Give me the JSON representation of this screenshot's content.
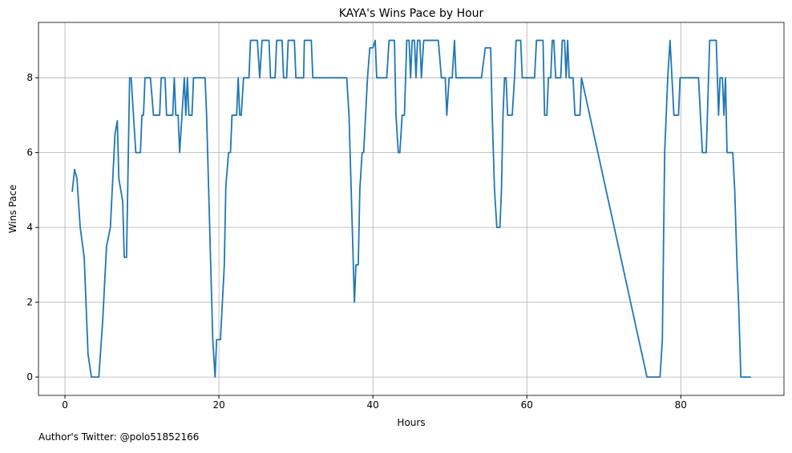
{
  "chart_data": {
    "type": "line",
    "title": "KAYA's Wins Pace by Hour",
    "xlabel": "Hours",
    "ylabel": "Wins Pace",
    "footnote": "Author's Twitter: @polo51852166",
    "xlim": [
      -3.44,
      93.4
    ],
    "ylim": [
      -0.49,
      9.48
    ],
    "xticks": [
      0,
      20,
      40,
      60,
      80
    ],
    "yticks": [
      0,
      2,
      4,
      6,
      8
    ],
    "grid": true,
    "x": [
      0.94,
      1.25,
      1.56,
      1.98,
      2.5,
      3.0,
      3.44,
      4.4,
      4.9,
      5.4,
      5.9,
      6.5,
      6.8,
      7.0,
      7.5,
      7.7,
      8.0,
      8.4,
      8.6,
      9.2,
      9.8,
      10.0,
      10.2,
      10.4,
      11.1,
      11.5,
      12.3,
      12.5,
      13.0,
      13.2,
      14.0,
      14.2,
      14.4,
      14.7,
      14.9,
      15.5,
      15.7,
      15.9,
      16.1,
      16.5,
      16.7,
      18.2,
      18.4,
      19.2,
      19.5,
      19.7,
      20.2,
      20.7,
      20.9,
      21.25,
      21.5,
      21.7,
      22.3,
      22.5,
      22.7,
      22.9,
      23.2,
      23.9,
      24.1,
      24.99,
      25.3,
      25.6,
      26.5,
      26.7,
      27.3,
      27.5,
      28.2,
      28.4,
      28.8,
      29.0,
      29.8,
      30.0,
      31.0,
      31.1,
      32.0,
      32.2,
      36.6,
      36.9,
      37.6,
      37.8,
      38.1,
      38.3,
      38.6,
      38.8,
      39.3,
      39.6,
      40.0,
      40.3,
      40.5,
      41.8,
      42.1,
      42.8,
      43.0,
      43.3,
      43.5,
      43.8,
      44.1,
      44.4,
      44.7,
      44.9,
      45.1,
      45.4,
      45.6,
      45.8,
      46.1,
      46.3,
      46.6,
      48.5,
      48.9,
      49.4,
      49.6,
      49.9,
      50.3,
      50.6,
      50.8,
      54.1,
      54.6,
      55.3,
      55.5,
      55.8,
      56.1,
      56.5,
      56.7,
      56.9,
      57.1,
      57.3,
      57.5,
      58.1,
      58.4,
      58.6,
      59.2,
      59.4,
      61.0,
      61.25,
      62.1,
      62.3,
      62.6,
      62.8,
      63.1,
      63.3,
      63.5,
      63.75,
      64.4,
      64.6,
      64.9,
      65.1,
      65.3,
      65.5,
      66.0,
      66.25,
      66.9,
      67.1,
      75.6,
      77.3,
      77.6,
      77.9,
      78.3,
      78.6,
      78.85,
      79.1,
      79.7,
      79.9,
      82.3,
      82.8,
      83.3,
      83.75,
      84.6,
      84.9,
      85.1,
      85.4,
      85.6,
      85.8,
      86.0,
      86.75,
      87.0,
      87.3,
      87.5,
      87.8,
      89.1
    ],
    "series": [
      {
        "name": "Wins Pace",
        "color": "#1f77b4",
        "values": [
          4.95,
          5.55,
          5.3,
          4.0,
          3.2,
          0.6,
          0,
          0,
          1.5,
          3.5,
          4.0,
          6.5,
          6.85,
          5.3,
          4.7,
          3.2,
          3.2,
          8,
          8,
          6,
          6,
          7,
          7,
          8,
          8,
          7,
          7,
          8,
          8,
          7,
          7,
          8,
          7,
          7,
          6,
          8,
          7,
          8,
          7,
          7,
          8,
          8,
          7,
          1,
          0,
          1,
          1,
          3,
          5.1,
          6,
          6,
          7,
          7,
          8,
          7,
          7,
          8,
          8,
          9,
          9,
          8,
          9,
          9,
          8,
          8,
          9,
          9,
          8,
          8,
          9,
          9,
          8,
          8,
          9,
          9,
          8,
          8,
          7,
          2,
          3,
          3,
          5,
          6,
          6,
          8,
          8.8,
          8.8,
          9,
          8,
          8,
          9,
          9,
          7,
          6,
          6,
          7,
          7,
          9,
          9,
          8,
          9,
          9,
          8,
          9,
          9,
          8,
          9,
          9,
          8,
          8,
          7,
          8,
          8,
          9,
          8,
          8,
          8.8,
          8.8,
          7,
          5,
          4,
          4,
          5,
          7,
          8,
          8,
          7,
          7,
          8,
          9,
          9,
          8,
          8,
          9,
          9,
          7,
          7,
          8,
          8,
          9,
          9,
          8,
          8,
          9,
          9,
          8,
          9,
          8,
          8,
          7,
          7,
          8,
          0,
          0,
          1,
          6,
          8,
          9,
          8,
          7,
          7,
          8,
          8,
          6,
          6,
          9,
          9,
          7,
          8,
          8,
          7,
          8,
          6,
          6,
          5,
          3,
          2,
          0,
          0
        ]
      }
    ]
  }
}
